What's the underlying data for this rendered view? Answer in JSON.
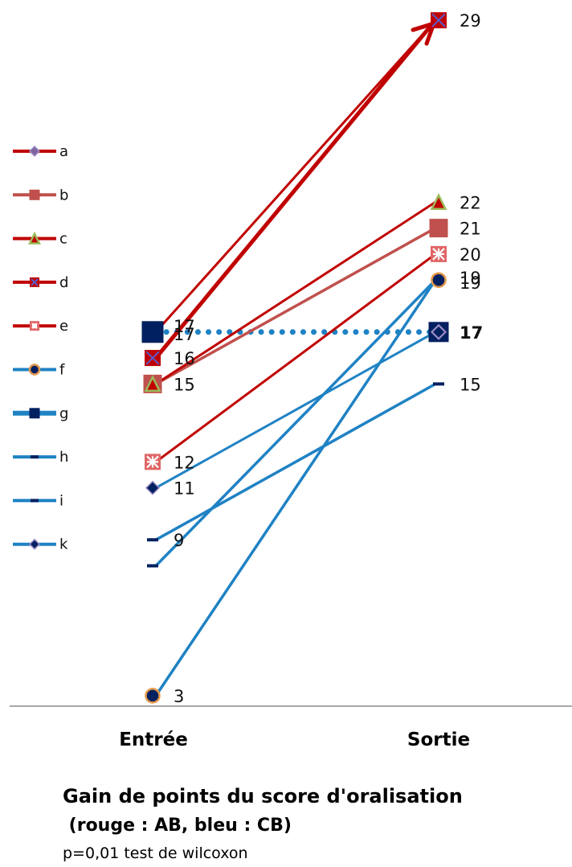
{
  "chart_data": {
    "type": "line",
    "categories": [
      "Entrée",
      "Sortie"
    ],
    "ylim": [
      0,
      30
    ],
    "grid": false,
    "legend_position": "left",
    "series": [
      {
        "name": "a",
        "values": [
          17,
          29
        ],
        "color": "#C00000",
        "marker": "diamond",
        "marker_fill": "#8064A2",
        "width": 3,
        "dotted": false
      },
      {
        "name": "b",
        "values": [
          15,
          21
        ],
        "color": "#C0504D",
        "marker": "square",
        "marker_fill": "#C0504D",
        "width": 3.5,
        "dotted": false
      },
      {
        "name": "c",
        "values": [
          15,
          22
        ],
        "color": "#C00000",
        "marker": "triangle",
        "marker_fill": "#C00000",
        "width": 3,
        "dotted": false
      },
      {
        "name": "d",
        "values": [
          16,
          29
        ],
        "color": "#C00000",
        "marker": "square-x",
        "marker_fill": "#C00000",
        "width": 5,
        "dotted": false
      },
      {
        "name": "e",
        "values": [
          12,
          20
        ],
        "color": "#C00000",
        "marker": "asterisk-box",
        "marker_fill": "#F2DCDB",
        "width": 3,
        "dotted": false
      },
      {
        "name": "f",
        "values": [
          3,
          19
        ],
        "color": "#1F82C4",
        "marker": "circle",
        "marker_fill": "#002060",
        "width": 3.5,
        "dotted": false
      },
      {
        "name": "g",
        "values": [
          17,
          17
        ],
        "color": "#1F82C4",
        "marker": "square",
        "marker_fill": "#002060",
        "width": 4,
        "dotted": true
      },
      {
        "name": "h",
        "values": [
          9,
          15
        ],
        "color": "#1F82C4",
        "marker": "dash",
        "marker_fill": "#002060",
        "width": 3.5,
        "dotted": false
      },
      {
        "name": "i",
        "values": [
          8,
          19
        ],
        "color": "#1F82C4",
        "marker": "dash",
        "marker_fill": "#002060",
        "width": 3.5,
        "dotted": false
      },
      {
        "name": "k",
        "values": [
          11,
          17
        ],
        "color": "#1F82C4",
        "marker": "diamond",
        "marker_fill": "#002060",
        "width": 3,
        "dotted": false
      }
    ],
    "data_labels": [
      {
        "category": "Entrée",
        "value": 17,
        "text": "17"
      },
      {
        "category": "Entrée",
        "value": 17,
        "text": "17"
      },
      {
        "category": "Entrée",
        "value": 16,
        "text": "16"
      },
      {
        "category": "Entrée",
        "value": 15,
        "text": "15"
      },
      {
        "category": "Entrée",
        "value": 12,
        "text": "12"
      },
      {
        "category": "Entrée",
        "value": 11,
        "text": "11"
      },
      {
        "category": "Entrée",
        "value": 9,
        "text": "9"
      },
      {
        "category": "Entrée",
        "value": 3,
        "text": "3"
      },
      {
        "category": "Sortie",
        "value": 29,
        "text": "29"
      },
      {
        "category": "Sortie",
        "value": 22,
        "text": "22"
      },
      {
        "category": "Sortie",
        "value": 21,
        "text": "21"
      },
      {
        "category": "Sortie",
        "value": 20,
        "text": "20"
      },
      {
        "category": "Sortie",
        "value": 19,
        "text": "19"
      },
      {
        "category": "Sortie",
        "value": 19,
        "text": "19"
      },
      {
        "category": "Sortie",
        "value": 17,
        "text": "17"
      },
      {
        "category": "Sortie",
        "value": 17,
        "text": "17"
      },
      {
        "category": "Sortie",
        "value": 15,
        "text": "15"
      }
    ]
  },
  "caption": {
    "title": "Gain de points du score d'oralisation",
    "subtitle": " (rouge : AB, bleu : CB)",
    "note": "p=0,01 test de wilcoxon"
  }
}
